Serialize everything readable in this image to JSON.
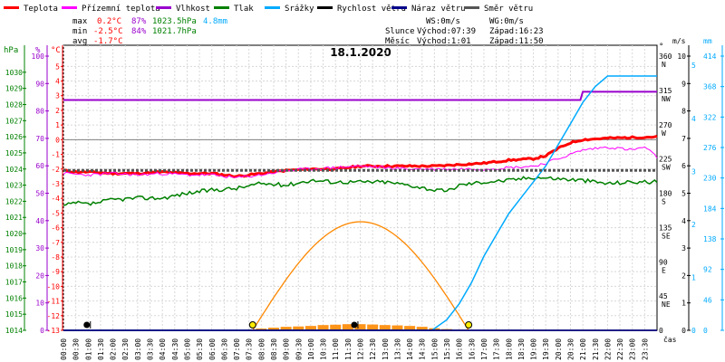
{
  "legend": [
    {
      "label": "Teplota",
      "color": "#ff0000"
    },
    {
      "label": "Přízemní teplota",
      "color": "#ff00ff"
    },
    {
      "label": "Vlhkost",
      "color": "#9900cc"
    },
    {
      "label": "Tlak",
      "color": "#008000"
    },
    {
      "label": "Srážky",
      "color": "#00aaff"
    },
    {
      "label": "Rychlost větru",
      "color": "#000000"
    },
    {
      "label": "Náraz větru",
      "color": "#00008b"
    },
    {
      "label": "Směr větru",
      "color": "#555555"
    }
  ],
  "stats": {
    "max": {
      "label": "max",
      "temp": "0.2°C",
      "hum": "87%",
      "press": "1023.5hPa",
      "rain": "4.8mm"
    },
    "min": {
      "label": "min",
      "temp": "-2.5°C",
      "hum": "84%",
      "press": "1021.7hPa"
    },
    "avg": {
      "label": "avg",
      "temp": "-1.7°C"
    }
  },
  "wind_info": {
    "ws": "WS:0m/s",
    "wg": "WG:0m/s"
  },
  "sun_info": {
    "label": "Slunce",
    "rise": "Východ:07:39",
    "set": "Západ:16:23"
  },
  "moon_info": {
    "label": "Měsíc",
    "rise": "Východ:1:01",
    "set": "Západ:11:50"
  },
  "title": "18.1.2020",
  "axes": {
    "pressure": {
      "unit": "hPa",
      "ticks": [
        "1030",
        "1029",
        "1028",
        "1027",
        "1026",
        "1025",
        "1024",
        "1023",
        "1022",
        "1021",
        "1020",
        "1019",
        "1018",
        "1017",
        "1016",
        "1015",
        "1014"
      ],
      "range": [
        1014,
        1031
      ],
      "color": "#008000"
    },
    "humidity": {
      "unit": "%",
      "ticks": [
        "100",
        "90",
        "80",
        "70",
        "60",
        "50",
        "40",
        "30",
        "20",
        "10",
        "0"
      ],
      "range": [
        0,
        100
      ],
      "color": "#9900cc"
    },
    "temperature": {
      "unit": "°C",
      "ticks": [
        "5",
        "4",
        "3",
        "2",
        "1",
        "0",
        "-1",
        "-2",
        "-3",
        "-4",
        "-5",
        "-6",
        "-7",
        "-8",
        "-9",
        "-10",
        "-11",
        "-12",
        "-13"
      ],
      "range": [
        -13,
        5.7
      ],
      "color": "#ff0000"
    },
    "direction": {
      "unit": "°",
      "ticks": [
        "360",
        "315",
        "270",
        "225",
        "180",
        "135",
        "90",
        "45",
        "0"
      ],
      "range": [
        0,
        360
      ],
      "letters": [
        "N",
        "NW",
        "W",
        "SW",
        "S",
        "SE",
        "E",
        "NE"
      ],
      "color": "#000000"
    },
    "wind_speed": {
      "unit": "m/s",
      "ticks": [
        "10",
        "9",
        "8",
        "7",
        "6",
        "5",
        "4",
        "3",
        "2",
        "1",
        "0"
      ],
      "range": [
        0,
        10
      ],
      "color": "#000000"
    },
    "rain": {
      "unit": "mm",
      "ticks": [
        "414",
        "368",
        "322",
        "276",
        "230",
        "184",
        "138",
        "92",
        "46",
        "0"
      ],
      "range": [
        0,
        414
      ],
      "color": "#00aaff"
    },
    "time_label": "čas",
    "time_ticks": [
      "00:00",
      "00:30",
      "01:00",
      "01:30",
      "02:00",
      "02:30",
      "03:00",
      "03:30",
      "04:00",
      "04:30",
      "05:00",
      "05:30",
      "06:00",
      "06:30",
      "07:00",
      "07:30",
      "08:00",
      "08:30",
      "09:00",
      "09:30",
      "10:00",
      "10:30",
      "11:00",
      "11:30",
      "12:00",
      "12:30",
      "13:00",
      "13:30",
      "14:00",
      "14:30",
      "15:00",
      "15:30",
      "16:00",
      "16:30",
      "17:00",
      "17:30",
      "18:00",
      "18:30",
      "19:00",
      "19:30",
      "20:00",
      "20:30",
      "21:00",
      "21:30",
      "22:00",
      "22:30",
      "23:00",
      "23:30"
    ]
  },
  "chart_data": {
    "type": "line",
    "x_label": "čas",
    "x_range_hours": [
      0,
      24
    ],
    "grid": true,
    "series": [
      {
        "name": "Teplota",
        "unit": "°C",
        "color": "#ff0000",
        "x": [
          0,
          0.5,
          1,
          2,
          3,
          4,
          5,
          6,
          7,
          8,
          9,
          10,
          11,
          12,
          13,
          14,
          15,
          16,
          17,
          18,
          19,
          19.5,
          20,
          20.5,
          21,
          21.5,
          22,
          23,
          24
        ],
        "y": [
          -2.1,
          -2.2,
          -2.2,
          -2.3,
          -2.3,
          -2.2,
          -2.3,
          -2.3,
          -2.5,
          -2.3,
          -2.1,
          -2.0,
          -2.0,
          -1.8,
          -1.8,
          -1.8,
          -1.8,
          -1.7,
          -1.6,
          -1.4,
          -1.3,
          -1.1,
          -0.6,
          -0.2,
          0.0,
          0.05,
          0.1,
          0.15,
          0.2
        ]
      },
      {
        "name": "Přízemní teplota",
        "unit": "°C",
        "color": "#ff00ff",
        "x": [
          0,
          1,
          2,
          3,
          4,
          5,
          6,
          7,
          8,
          9,
          10,
          11,
          12,
          13,
          14,
          15,
          16,
          17,
          18,
          19,
          19.5,
          20,
          20.5,
          21,
          21.5,
          22,
          23,
          23.5,
          24
        ],
        "y": [
          -2.3,
          -2.4,
          -2.3,
          -2.4,
          -2.3,
          -2.4,
          -2.4,
          -2.6,
          -2.4,
          -2.1,
          -2.0,
          -1.9,
          -1.8,
          -1.9,
          -2.0,
          -2.0,
          -2.0,
          -2.0,
          -1.9,
          -1.8,
          -1.6,
          -1.3,
          -1.0,
          -0.7,
          -0.6,
          -0.5,
          -0.7,
          -0.5,
          -1.2
        ]
      },
      {
        "name": "Vlhkost",
        "unit": "%",
        "color": "#9900cc",
        "x": [
          0,
          20.9,
          21.0,
          24
        ],
        "y": [
          84,
          84,
          87,
          87
        ]
      },
      {
        "name": "Tlak",
        "unit": "hPa",
        "color": "#008000",
        "x": [
          0,
          0.5,
          1,
          2,
          3,
          4,
          5,
          6,
          7,
          8,
          9,
          10,
          11,
          12,
          13,
          14,
          15,
          15.5,
          16,
          17,
          18,
          19,
          20,
          21,
          22,
          23,
          24
        ],
        "y": [
          1021.7,
          1021.9,
          1021.8,
          1022.1,
          1022.2,
          1022.2,
          1022.5,
          1022.7,
          1022.8,
          1023.1,
          1023.0,
          1023.3,
          1023.2,
          1023.2,
          1023.2,
          1023.0,
          1022.7,
          1022.6,
          1023.0,
          1023.2,
          1023.3,
          1023.5,
          1023.4,
          1023.3,
          1023.1,
          1023.2,
          1023.2
        ]
      },
      {
        "name": "Srážky",
        "unit": "mm",
        "color": "#00aaff",
        "x": [
          0,
          14.9,
          15.5,
          16,
          16.5,
          17,
          17.5,
          18,
          18.5,
          19,
          19.5,
          20,
          20.5,
          21,
          21.5,
          22,
          23,
          24
        ],
        "y": [
          0,
          0,
          0.2,
          0.5,
          0.9,
          1.4,
          1.8,
          2.2,
          2.5,
          2.8,
          3.1,
          3.5,
          3.9,
          4.3,
          4.6,
          4.8,
          4.8,
          4.8
        ]
      },
      {
        "name": "Směr větru",
        "unit": "°",
        "color": "#555555",
        "x": [
          0,
          24
        ],
        "y": [
          210,
          210
        ]
      },
      {
        "name": "Rychlost větru",
        "unit": "m/s",
        "color": "#000000",
        "x": [
          0,
          24
        ],
        "y": [
          0,
          0
        ]
      },
      {
        "name": "Náraz větru",
        "unit": "m/s",
        "color": "#00008b",
        "x": [
          0,
          24
        ],
        "y": [
          0,
          0
        ]
      }
    ],
    "sun_curve": {
      "rise_h": 7.65,
      "set_h": 16.383,
      "color": "#ff8800"
    },
    "moon_marks": {
      "rise_h": 1.017,
      "set_h": 11.833
    },
    "solar_bars": {
      "color": "#ff8800",
      "x": [
        7.7,
        8,
        8.5,
        9,
        9.5,
        10,
        10.5,
        11,
        11.5,
        12,
        12.5,
        13,
        13.5,
        14,
        14.5,
        15,
        15.5,
        16
      ],
      "y": [
        0.05,
        0.1,
        0.15,
        0.2,
        0.22,
        0.25,
        0.3,
        0.32,
        0.35,
        0.35,
        0.33,
        0.3,
        0.28,
        0.25,
        0.2,
        0.12,
        0.07,
        0.03
      ]
    }
  }
}
